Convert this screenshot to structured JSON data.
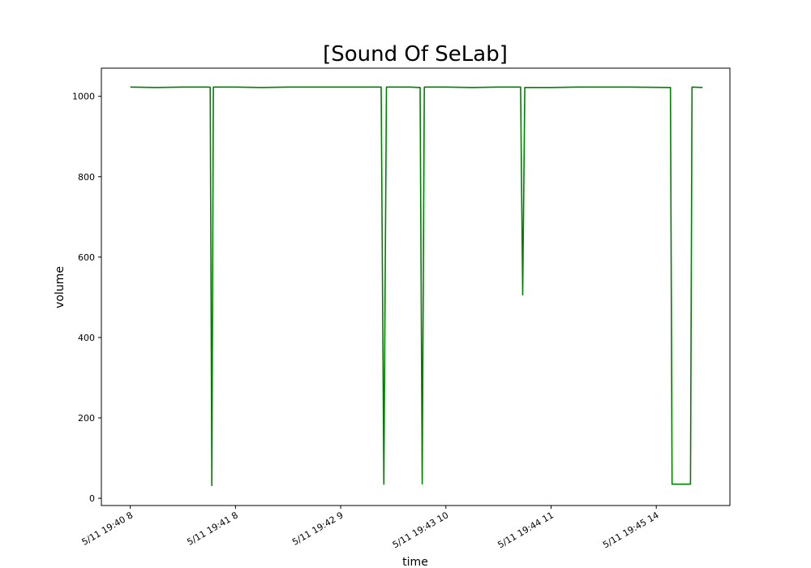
{
  "chart_data": {
    "type": "line",
    "title": "[Sound Of SeLab]",
    "xlabel": "time",
    "ylabel": "volume",
    "ylim": [
      -18,
      1070
    ],
    "xlim": [
      -5.5,
      114
    ],
    "yticks": [
      0,
      200,
      400,
      600,
      800,
      1000
    ],
    "xticks": [
      {
        "x": 0,
        "label": "5/11 19:40 8"
      },
      {
        "x": 20,
        "label": "5/11 19:41 8"
      },
      {
        "x": 40,
        "label": "5/11 19:42 9"
      },
      {
        "x": 60,
        "label": "5/11 19:43 10"
      },
      {
        "x": 80,
        "label": "5/11 19:44 11"
      },
      {
        "x": 100,
        "label": "5/11 19:45 14"
      }
    ],
    "grid": false,
    "series": [
      {
        "color": "#008000",
        "points": [
          [
            0,
            1023
          ],
          [
            5,
            1022
          ],
          [
            10,
            1023
          ],
          [
            15,
            1023
          ],
          [
            15.2,
            1022
          ],
          [
            15.5,
            32
          ],
          [
            15.8,
            1023
          ],
          [
            20,
            1023
          ],
          [
            25,
            1022
          ],
          [
            30,
            1023
          ],
          [
            35,
            1023
          ],
          [
            47.7,
            1023
          ],
          [
            48.2,
            35
          ],
          [
            48.7,
            1023
          ],
          [
            53,
            1023
          ],
          [
            55,
            1022
          ],
          [
            55.1,
            1022
          ],
          [
            55.5,
            36
          ],
          [
            55.9,
            1023
          ],
          [
            60,
            1023
          ],
          [
            65,
            1022
          ],
          [
            70,
            1023
          ],
          [
            74.2,
            1023
          ],
          [
            74.6,
            506
          ],
          [
            75,
            1022
          ],
          [
            80,
            1022
          ],
          [
            85,
            1023
          ],
          [
            90,
            1023
          ],
          [
            95,
            1023
          ],
          [
            102.7,
            1022
          ],
          [
            103,
            35
          ],
          [
            106.5,
            35
          ],
          [
            106.8,
            1023
          ],
          [
            108.8,
            1022
          ]
        ]
      }
    ]
  }
}
